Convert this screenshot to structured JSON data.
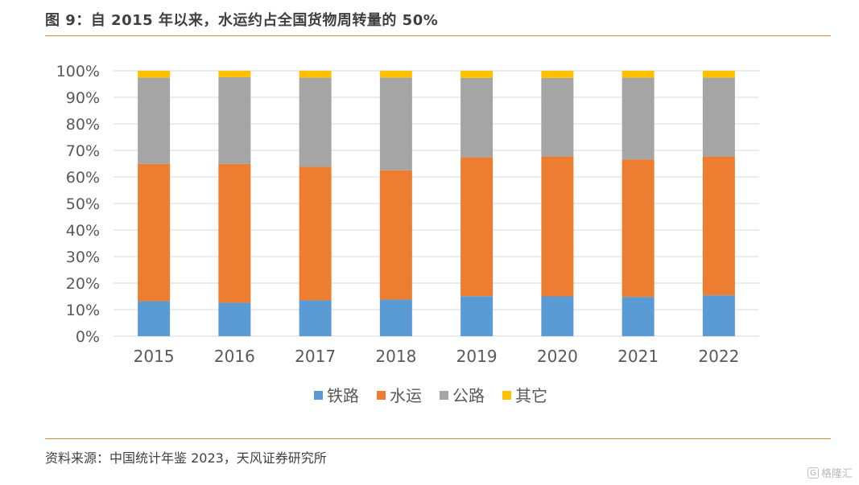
{
  "title": "图 9：自 2015 年以来，水运约占全国货物周转量的 50%",
  "source": "资料来源：中国统计年鉴 2023，天风证券研究所",
  "watermark": "格隆汇",
  "colors": {
    "铁路": "#5b9bd5",
    "水运": "#ed7d31",
    "公路": "#a5a5a5",
    "其它": "#ffc000",
    "grid": "#d9d9d9",
    "axis_text": "#595959",
    "rule": "#c98a3d"
  },
  "chart_data": {
    "type": "bar",
    "stacked": true,
    "percent": true,
    "categories": [
      "2015",
      "2016",
      "2017",
      "2018",
      "2019",
      "2020",
      "2021",
      "2022"
    ],
    "series": [
      {
        "name": "铁路",
        "values": [
          13.2,
          12.6,
          13.5,
          13.8,
          15.1,
          15.0,
          14.8,
          15.4
        ]
      },
      {
        "name": "水运",
        "values": [
          51.7,
          52.3,
          50.3,
          48.7,
          52.3,
          52.7,
          51.8,
          52.3
        ]
      },
      {
        "name": "公路",
        "values": [
          32.5,
          32.7,
          33.6,
          34.9,
          29.9,
          29.6,
          30.8,
          29.7
        ]
      },
      {
        "name": "其它",
        "values": [
          2.6,
          2.4,
          2.6,
          2.6,
          2.7,
          2.7,
          2.6,
          2.6
        ]
      }
    ],
    "yticks": [
      "0%",
      "10%",
      "20%",
      "30%",
      "40%",
      "50%",
      "60%",
      "70%",
      "80%",
      "90%",
      "100%"
    ],
    "ylim": [
      0,
      100
    ],
    "grid": true,
    "legend": "bottom"
  }
}
